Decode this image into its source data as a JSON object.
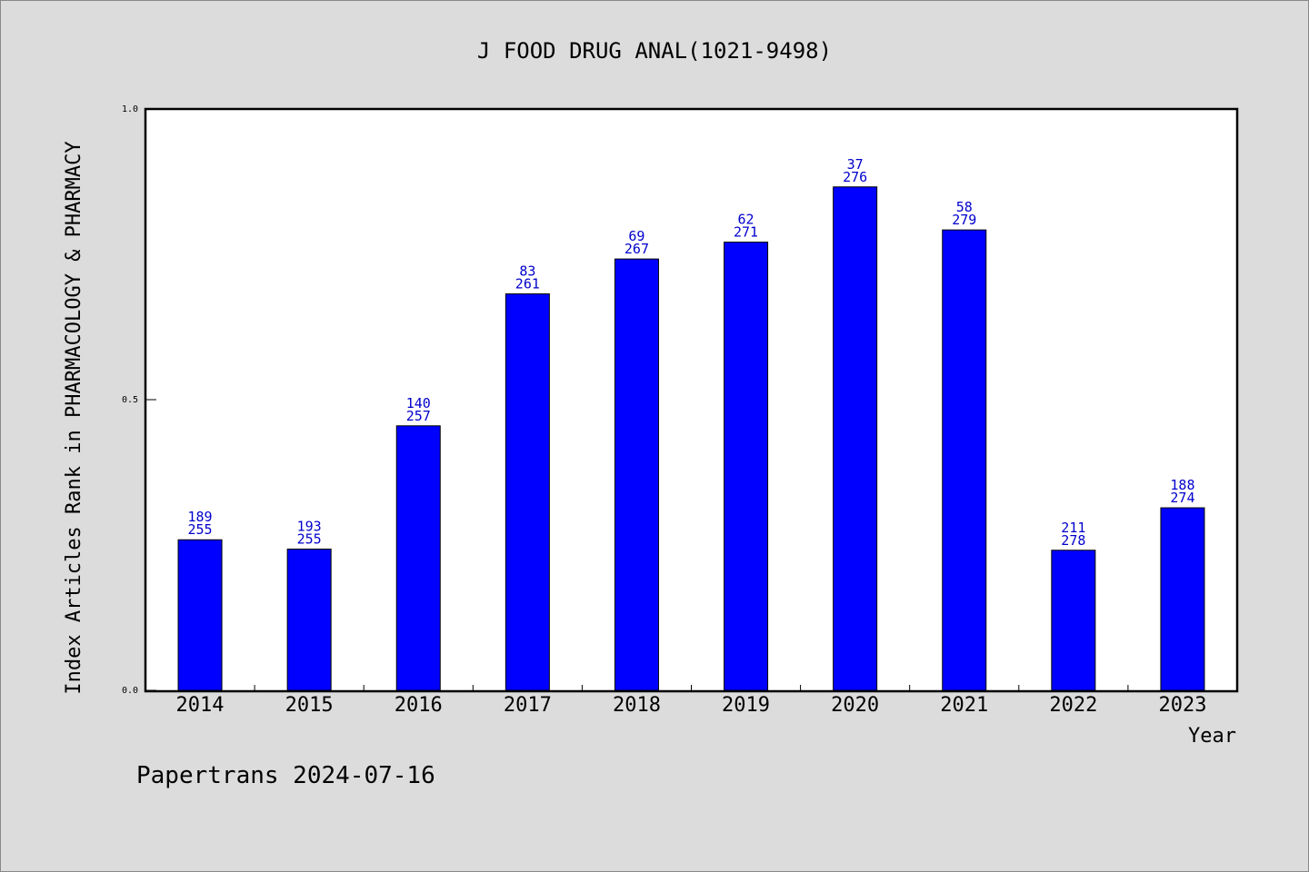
{
  "chart_data": {
    "type": "bar",
    "title": "J FOOD DRUG ANAL(1021-9498)",
    "xlabel": "Year",
    "ylabel": "Index Articles Rank in PHARMACOLOGY & PHARMACY",
    "ylim": [
      0.0,
      1.0
    ],
    "yticks": [
      "0.0",
      "0.5",
      "1.0"
    ],
    "categories": [
      "2014",
      "2015",
      "2016",
      "2017",
      "2018",
      "2019",
      "2020",
      "2021",
      "2022",
      "2023"
    ],
    "values": [
      0.259,
      0.243,
      0.455,
      0.682,
      0.742,
      0.771,
      0.866,
      0.792,
      0.241,
      0.314
    ],
    "rank": [
      "189",
      "193",
      "140",
      "83",
      "69",
      "62",
      "37",
      "58",
      "211",
      "188"
    ],
    "total": [
      "255",
      "255",
      "257",
      "261",
      "267",
      "271",
      "276",
      "279",
      "278",
      "274"
    ],
    "bar_color": "#0000ff",
    "label_color": "#0000cc"
  },
  "footer": "Papertrans 2024-07-16"
}
